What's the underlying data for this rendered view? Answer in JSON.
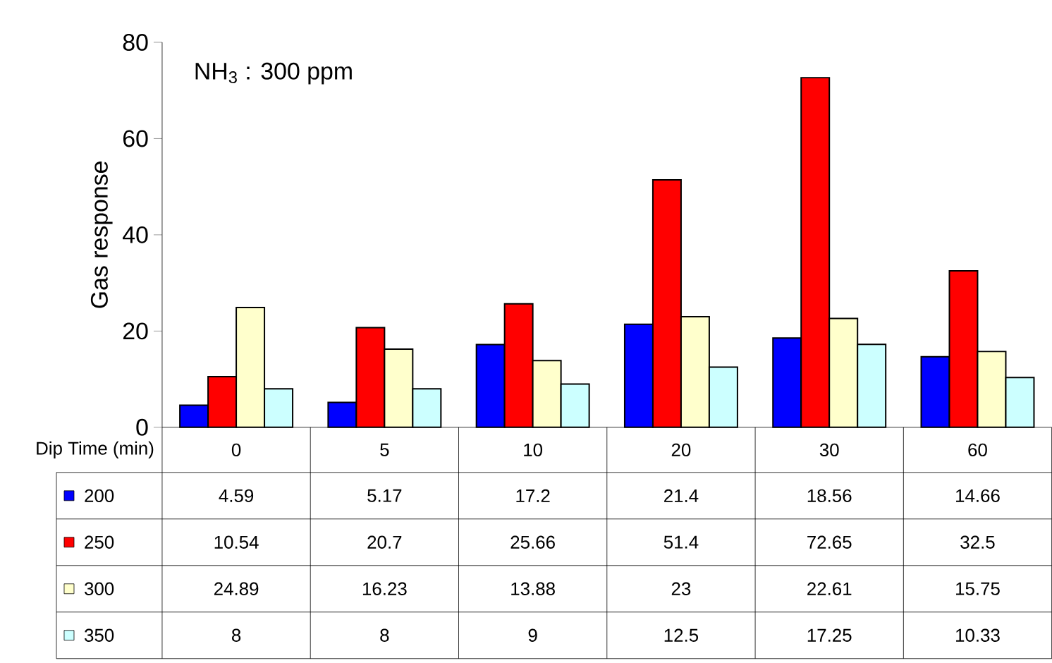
{
  "chart_data": {
    "type": "bar",
    "xlabel": "Dip Time (min)",
    "ylabel": "Gas response",
    "categories": [
      "0",
      "5",
      "10",
      "20",
      "30",
      "60"
    ],
    "series": [
      {
        "name": "200",
        "color": "#0000ff",
        "values": [
          4.59,
          5.17,
          17.2,
          21.4,
          18.56,
          14.66
        ]
      },
      {
        "name": "250",
        "color": "#ff0000",
        "values": [
          10.54,
          20.7,
          25.66,
          51.4,
          72.65,
          32.5
        ]
      },
      {
        "name": "300",
        "color": "#ffffcc",
        "values": [
          24.89,
          16.23,
          13.88,
          23,
          22.61,
          15.75
        ]
      },
      {
        "name": "350",
        "color": "#ccffff",
        "values": [
          8,
          8,
          9,
          12.5,
          17.25,
          10.33
        ]
      }
    ],
    "ylim": [
      0,
      80
    ],
    "yticks": [
      0,
      20,
      40,
      60,
      80
    ],
    "annotations": [
      "NH$_{3}$ : 300 ppm"
    ],
    "data_labels": true,
    "legend": "bottom left",
    "grid": false
  }
}
